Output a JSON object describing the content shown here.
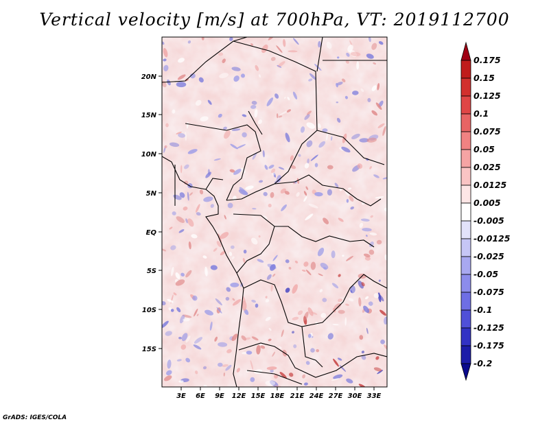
{
  "title": "Vertical velocity [m/s] at 700hPa, VT: 2019112700",
  "footer": "GrADS: IGES/COLA",
  "map": {
    "lon_range": [
      0,
      35
    ],
    "lat_range": [
      -20,
      25
    ],
    "lat_ticks": [
      "20N",
      "15N",
      "10N",
      "5N",
      "EQ",
      "5S",
      "10S",
      "15S"
    ],
    "lon_ticks": [
      "3E",
      "6E",
      "9E",
      "12E",
      "15E",
      "18E",
      "21E",
      "24E",
      "27E",
      "30E",
      "33E"
    ]
  },
  "colorbar": {
    "labels": [
      "0.175",
      "0.15",
      "0.125",
      "0.1",
      "0.075",
      "0.05",
      "0.025",
      "0.0125",
      "0.005",
      "-0.005",
      "-0.0125",
      "-0.025",
      "-0.05",
      "-0.075",
      "-0.1",
      "-0.125",
      "-0.175",
      "-0.2"
    ],
    "colors": [
      "#a00014",
      "#c01c1c",
      "#d2302e",
      "#e04646",
      "#e86464",
      "#f08282",
      "#f6a4a4",
      "#fac4c4",
      "#fde6e6",
      "#ffffff",
      "#e2e2fa",
      "#c6c6f6",
      "#a8a8f0",
      "#8c8ceb",
      "#6e6ee4",
      "#5050d8",
      "#3232c4",
      "#1c1ca8",
      "#0a0a8c"
    ]
  }
}
